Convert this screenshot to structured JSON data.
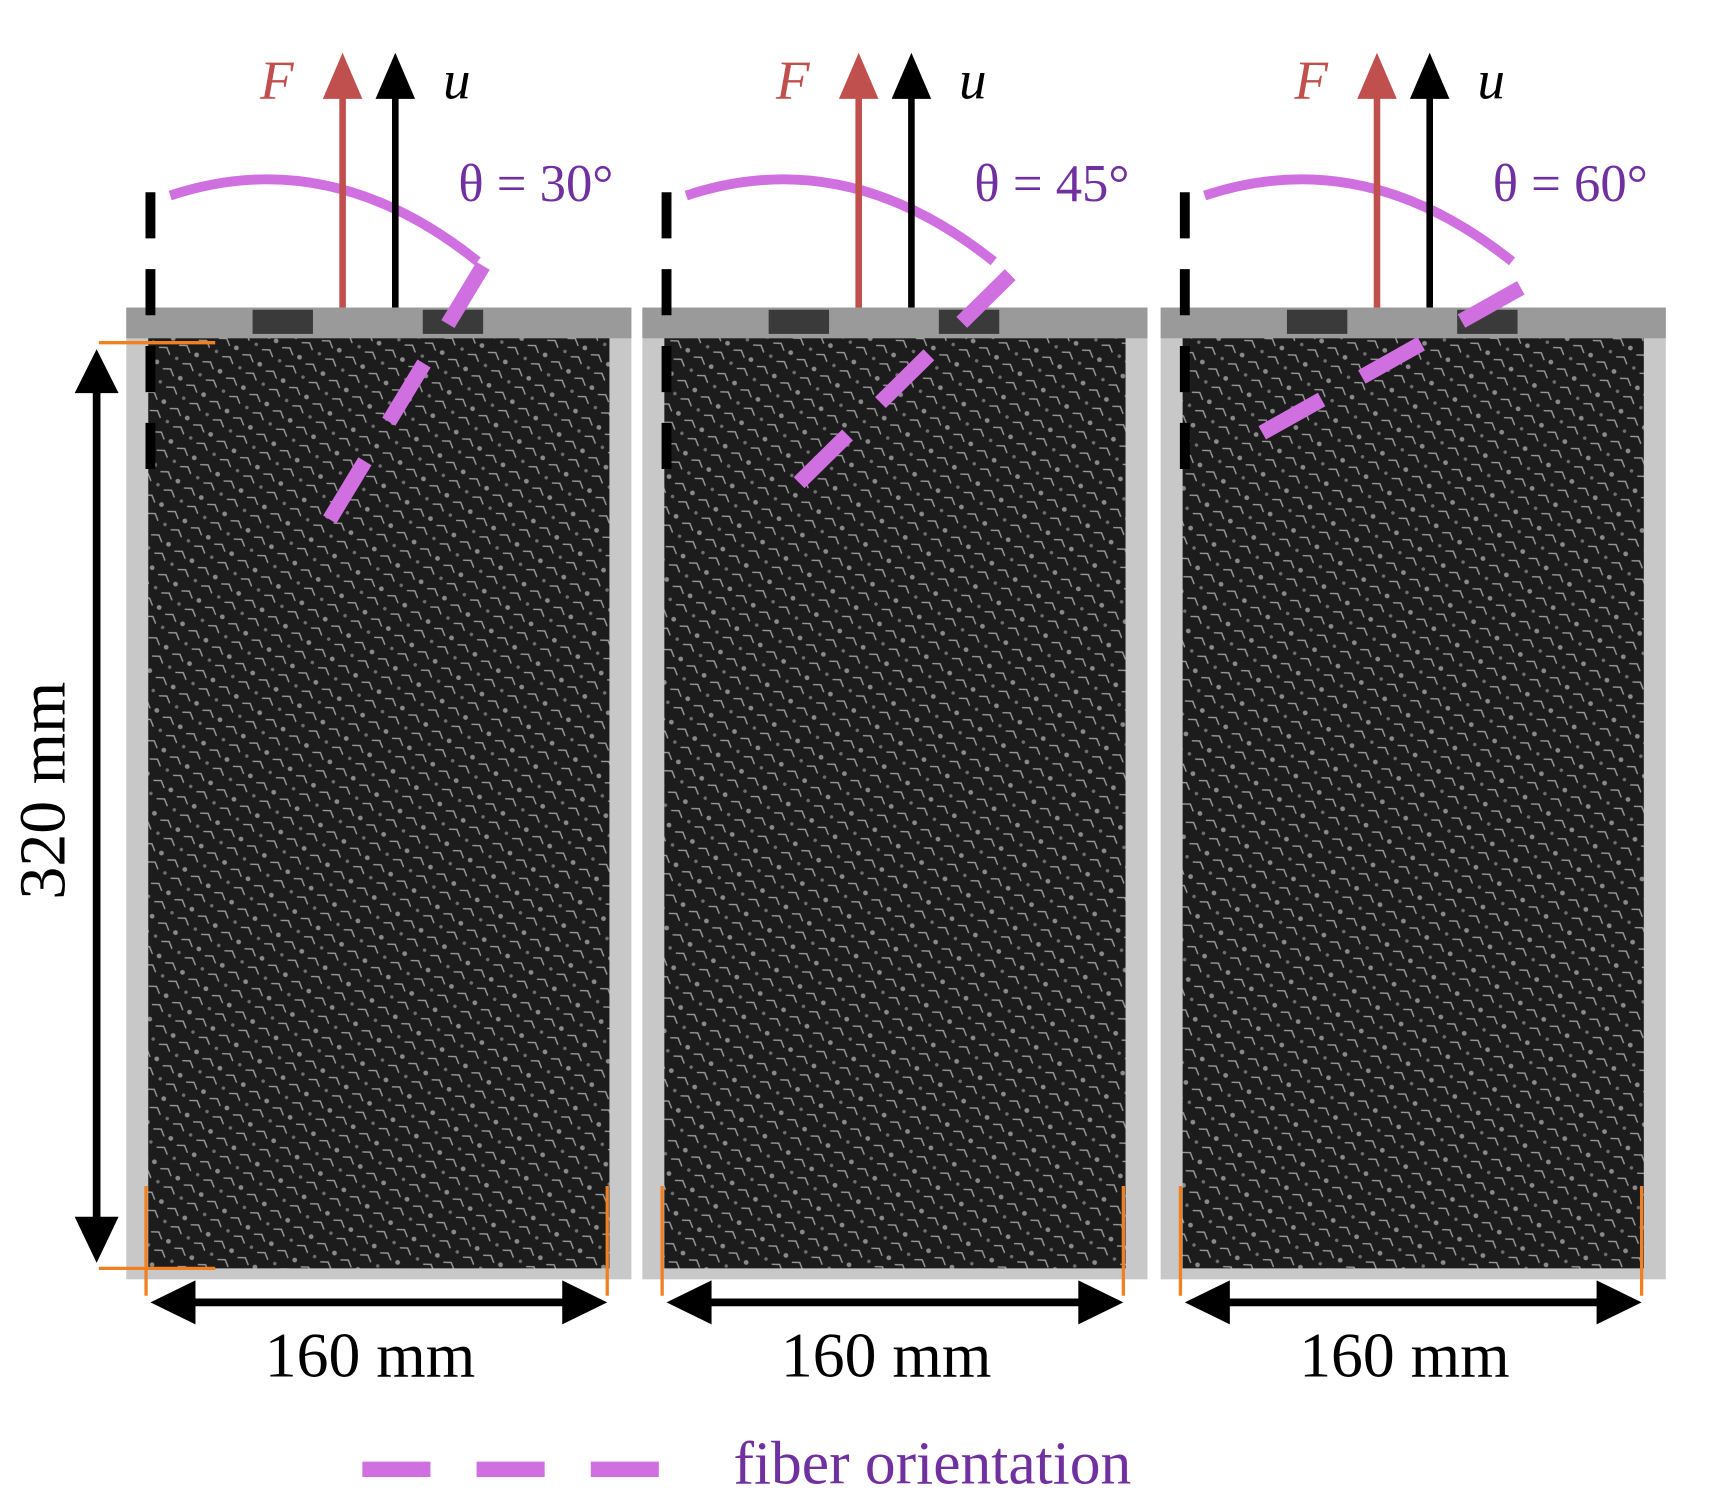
{
  "panels": [
    {
      "force": "F",
      "displacement": "u",
      "angle": "θ = 30°",
      "width": "160 mm"
    },
    {
      "force": "F",
      "displacement": "u",
      "angle": "θ = 45°",
      "width": "160 mm"
    },
    {
      "force": "F",
      "displacement": "u",
      "angle": "θ = 60°",
      "width": "160 mm"
    }
  ],
  "height": "320 mm",
  "legend": {
    "label": "fiber orientation"
  }
}
